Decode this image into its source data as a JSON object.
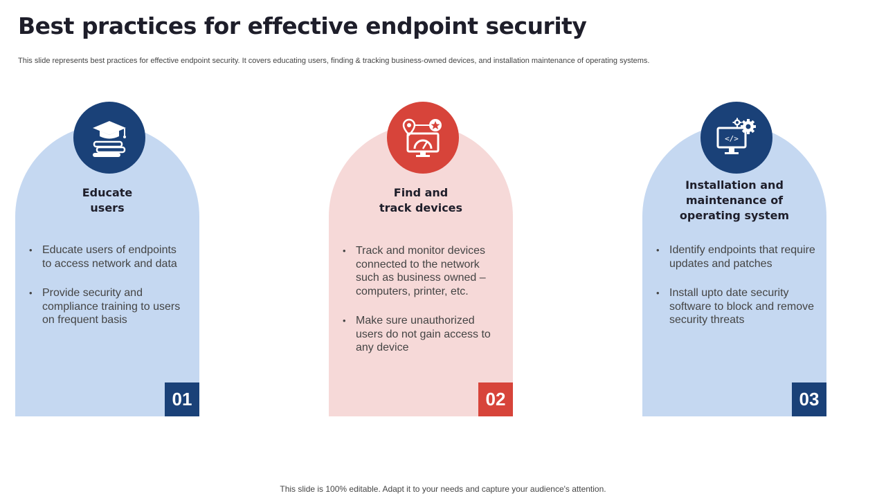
{
  "title": "Best practices for effective endpoint security",
  "subtitle": "This slide represents best practices for effective endpoint security. It covers educating users, finding & tracking business-owned devices, and installation maintenance of operating systems.",
  "colors": {
    "navy": "#1a4178",
    "red": "#d7443a",
    "light_blue": "#c5d8f1",
    "light_pink": "#f6d9d8"
  },
  "cards": [
    {
      "icon": "graduation-books-icon",
      "title_lines": [
        "Educate",
        "users"
      ],
      "bullets": [
        "Educate users of endpoints to access network and data",
        "Provide security and compliance training to users on frequent basis"
      ],
      "number": "01"
    },
    {
      "icon": "location-monitor-gauge-icon",
      "title_lines": [
        "Find and",
        "track devices"
      ],
      "bullets": [
        "Track and monitor devices connected to the network such as business owned – computers, printer, etc.",
        "Make sure unauthorized users do not gain access to any device"
      ],
      "number": "02"
    },
    {
      "icon": "monitor-code-gears-icon",
      "title_lines": [
        "Installation and",
        "maintenance of",
        "operating system"
      ],
      "bullets": [
        "Identify endpoints that require updates and patches",
        "Install upto date security software to block and remove security threats"
      ],
      "number": "03"
    }
  ],
  "footer": "This slide is 100% editable. Adapt it to your needs and capture your audience's attention."
}
